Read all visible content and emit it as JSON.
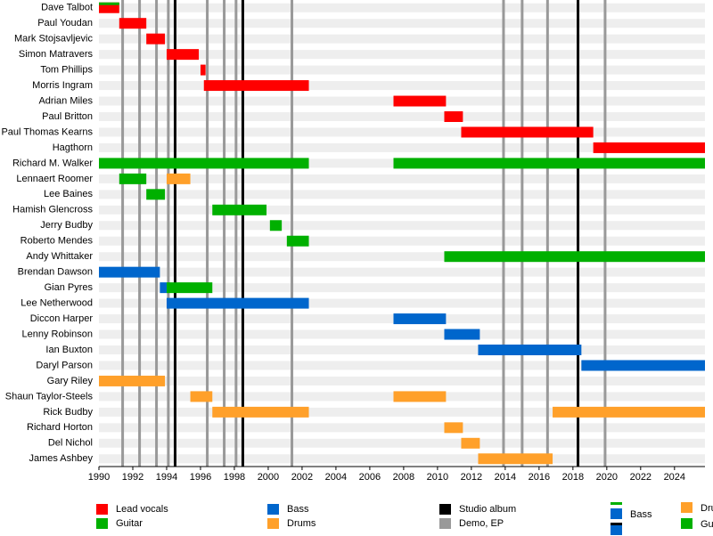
{
  "chart_data": {
    "type": "timeline",
    "categories": [
      "Dave Talbot",
      "Paul Youdan",
      "Mark Stojsavljevic",
      "Simon Matravers",
      "Tom Phillips",
      "Morris Ingram",
      "Adrian Miles",
      "Paul Britton",
      "Paul Thomas Kearns",
      "Hagthorn",
      "Richard M. Walker",
      "Lennaert Roomer",
      "Lee Baines",
      "Hamish Glencross",
      "Jerry Budby",
      "Roberto Mendes",
      "Andy Whittaker",
      "Brendan Dawson",
      "Gian Pyres",
      "Lee Netherwood",
      "Diccon Harper",
      "Lenny Robinson",
      "Ian Buxton",
      "Daryl Parson",
      "Gary Riley",
      "Shaun Taylor-Steels",
      "Rick Budby",
      "Richard Horton",
      "Del Nichol",
      "James Ashbey"
    ],
    "series": [
      {
        "name": "Lead vocals",
        "color": "#ff0000",
        "values": [
          [
            [
              1990,
              1991.2
            ]
          ],
          [
            [
              1991.2,
              1992.8
            ]
          ],
          [
            [
              1992.8,
              1993.9
            ]
          ],
          [
            [
              1994,
              1995.9
            ]
          ],
          [
            [
              1996,
              1996.3
            ]
          ],
          [
            [
              1996.2,
              2002.4
            ]
          ],
          [
            [
              2007.4,
              2010.5
            ]
          ],
          [
            [
              2010.4,
              2011.5
            ]
          ],
          [
            [
              2011.4,
              2019.2
            ]
          ],
          [
            [
              2019.2,
              2025.8
            ]
          ],
          null,
          null,
          null,
          null,
          null,
          null,
          null,
          null,
          null,
          null,
          null,
          null,
          null,
          null,
          null,
          null,
          null,
          null,
          null,
          null
        ]
      },
      {
        "name": "Guitar",
        "color": "#00b000",
        "values": [
          [
            [
              1990,
              1991.2
            ]
          ],
          null,
          null,
          null,
          null,
          null,
          null,
          null,
          null,
          null,
          [
            [
              1990,
              2002.4
            ],
            [
              2007.4,
              2025.8
            ]
          ],
          [
            [
              1991.2,
              1992.8
            ]
          ],
          [
            [
              1992.8,
              1993.9
            ]
          ],
          [
            [
              1996.7,
              1999.9
            ]
          ],
          [
            [
              2000.1,
              2000.8
            ]
          ],
          [
            [
              2001.1,
              2002.4
            ]
          ],
          [
            [
              2010.4,
              2025.8
            ]
          ],
          null,
          [
            [
              1994,
              1996.7
            ]
          ],
          null,
          null,
          null,
          null,
          null,
          null,
          null,
          null,
          null,
          null,
          null
        ]
      },
      {
        "name": "Bass",
        "color": "#0066cc",
        "values": [
          null,
          null,
          null,
          null,
          null,
          null,
          null,
          null,
          null,
          null,
          null,
          null,
          null,
          null,
          null,
          null,
          null,
          [
            [
              1990,
              1993.6
            ]
          ],
          [
            [
              1993.6,
              1994
            ]
          ],
          [
            [
              1994,
              2002.4
            ]
          ],
          [
            [
              2007.4,
              2010.5
            ]
          ],
          [
            [
              2010.4,
              2012.5
            ]
          ],
          [
            [
              2012.4,
              2018.5
            ]
          ],
          [
            [
              2018.5,
              2025.8
            ]
          ],
          null,
          null,
          null,
          null,
          null,
          null
        ]
      },
      {
        "name": "Drums",
        "color": "#ffa02a",
        "values": [
          null,
          null,
          null,
          null,
          null,
          null,
          null,
          null,
          null,
          null,
          null,
          [
            [
              1994,
              1995.4
            ]
          ],
          null,
          null,
          null,
          null,
          null,
          null,
          null,
          null,
          null,
          null,
          null,
          null,
          [
            [
              1990,
              1993.9
            ]
          ],
          [
            [
              1995.4,
              1996.7
            ],
            [
              2007.4,
              2010.5
            ]
          ],
          [
            [
              1996.7,
              2002.4
            ],
            [
              2016.8,
              2025.8
            ]
          ],
          [
            [
              2010.4,
              2011.5
            ]
          ],
          [
            [
              2011.4,
              2012.5
            ]
          ],
          [
            [
              2012.4,
              2016.8
            ]
          ]
        ]
      }
    ],
    "events": [
      {
        "name": "Studio album",
        "color": "#000000",
        "x": [
          1994.5,
          1998.5,
          2018.3
        ]
      },
      {
        "name": "Demo, EP",
        "color": "#999999",
        "x": [
          1991.4,
          1992.4,
          1993.4,
          1994.1,
          1996.4,
          1997.4,
          1998.1,
          2001.4,
          2013.9,
          2015,
          2016.5,
          2019.9
        ]
      }
    ],
    "extra_legend": [
      {
        "name": "Bass",
        "color": "#0066cc"
      },
      {
        "name": "Drums",
        "color": "#ffa02a"
      },
      {
        "name": "Guitar",
        "color": "#00b000"
      }
    ],
    "xlim": [
      1990,
      2025.8
    ],
    "xticks": [
      1990,
      1992,
      1994,
      1996,
      1998,
      2000,
      2002,
      2004,
      2006,
      2008,
      2010,
      2012,
      2014,
      2016,
      2018,
      2020,
      2022,
      2024
    ]
  }
}
